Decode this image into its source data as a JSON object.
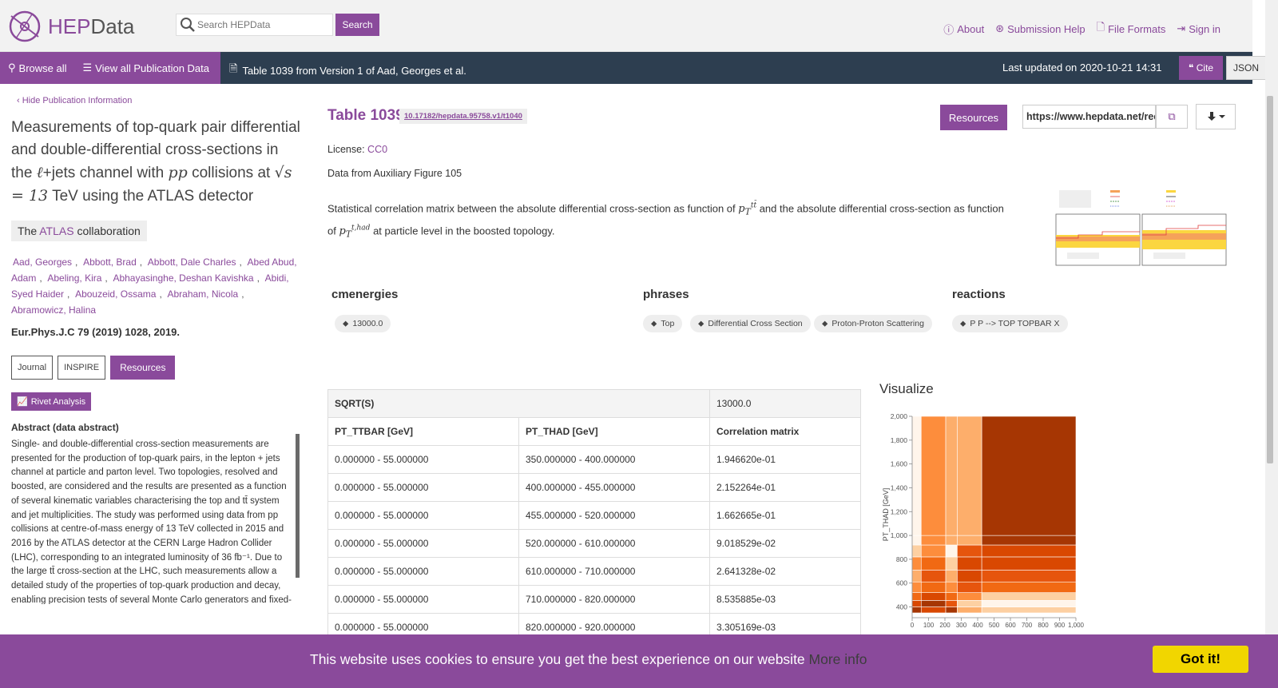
{
  "header": {
    "logo_text_a": "HEP",
    "logo_text_b": "Data",
    "search_placeholder": "Search HEPData",
    "search_button": "Search",
    "nav": [
      "About",
      "Submission Help",
      "File Formats",
      "Sign in"
    ]
  },
  "navbar": {
    "browse_all": "Browse all",
    "view_all": "View all Publication Data",
    "table_ref": "Table 1039 from Version 1 of Aad, Georges et al.",
    "last_updated": "Last updated on 2020-10-21 14:31",
    "cite": "Cite",
    "json": "JSON"
  },
  "publication": {
    "hide_info": "Hide Publication Information",
    "title_part1": "Measurements of top-quark pair differential and double-differential cross-sections in the",
    "title_part2": "+jets channel with",
    "title_part3": "collisions at",
    "title_part4": "TeV using the ATLAS detector",
    "collab_prefix": "The",
    "collab_name": "ATLAS",
    "collab_suffix": "collaboration",
    "authors": [
      "Aad, Georges",
      "Abbott, Brad",
      "Abbott, Dale Charles",
      "Abed Abud, Adam",
      "Abeling, Kira",
      "Abhayasinghe, Deshan Kavishka",
      "Abidi, Syed Haider",
      "Abouzeid, Ossama",
      "Abraham, Nicola",
      "Abramowicz, Halina"
    ],
    "journal": "Eur.Phys.J.C 79 (2019) 1028, 2019",
    "buttons": [
      "Journal",
      "INSPIRE",
      "Resources"
    ],
    "rivet": "Rivet Analysis",
    "abstract_heading": "Abstract (data abstract)",
    "abstract": "Single- and double-differential cross-section measurements are presented for the production of top-quark pairs, in the lepton + jets channel at particle and parton level. Two topologies, resolved and boosted, are considered and the results are presented as a function of several kinematic variables characterising the top and tt̄ system and jet multiplicities. The study was performed using data from pp collisions at centre-of-mass energy of 13 TeV collected in 2015 and 2016 by the ATLAS detector at the CERN Large Hadron Collider (LHC), corresponding to an integrated luminosity of 36 fb⁻¹. Due to the large tt̄ cross-section at the LHC, such measurements allow a detailed study of the properties of top-quark production and decay, enabling precision tests of several Monte Carlo generators and fixed-"
  },
  "table": {
    "title": "Table 1039",
    "doi": "10.17182/hepdata.95758.v1/t1040",
    "resources": "Resources",
    "url": "https://www.hepdata.net/record/ins1759875?version=1&table=Table%201039",
    "license_label": "License:",
    "license": "CC0",
    "data_from": "Data from Auxiliary Figure 105",
    "desc_a": "Statistical correlation matrix between the absolute differential cross-section as function of",
    "desc_b": "and the absolute differential cross-section as function of",
    "desc_c": "at particle level in the boosted topology.",
    "keywords": {
      "cmenergies": {
        "heading": "cmenergies",
        "chips": [
          "13000.0"
        ]
      },
      "phrases": {
        "heading": "phrases",
        "chips": [
          "Top",
          "Differential Cross Section",
          "Proton-Proton Scattering"
        ]
      },
      "reactions": {
        "heading": "reactions",
        "chips": [
          "P P --> TOP TOPBAR X"
        ]
      }
    },
    "qual_label": "SQRT(S)",
    "qual_value": "13000.0",
    "columns": [
      "PT_TTBAR [GeV]",
      "PT_THAD [GeV]",
      "Correlation matrix"
    ],
    "rows": [
      [
        "0.000000 - 55.000000",
        "350.000000 - 400.000000",
        "1.946620e-01"
      ],
      [
        "0.000000 - 55.000000",
        "400.000000 - 455.000000",
        "2.152264e-01"
      ],
      [
        "0.000000 - 55.000000",
        "455.000000 - 520.000000",
        "1.662665e-01"
      ],
      [
        "0.000000 - 55.000000",
        "520.000000 - 610.000000",
        "9.018529e-02"
      ],
      [
        "0.000000 - 55.000000",
        "610.000000 - 710.000000",
        "2.641328e-02"
      ],
      [
        "0.000000 - 55.000000",
        "710.000000 - 820.000000",
        "8.535885e-03"
      ],
      [
        "0.000000 - 55.000000",
        "820.000000 - 920.000000",
        "3.305169e-03"
      ]
    ]
  },
  "visualize": {
    "title": "Visualize",
    "ylabel": "PT_THAD [GeV]",
    "yticks": [
      "2,000",
      "1,800",
      "1,600",
      "1,400",
      "1,200",
      "1,000",
      "800",
      "600",
      "400"
    ],
    "xticks": [
      "0",
      "100",
      "200",
      "300",
      "400",
      "500",
      "600",
      "700",
      "800",
      "900",
      "1,000"
    ]
  },
  "chart_data": {
    "type": "heatmap",
    "title": "",
    "xlabel": "",
    "ylabel": "PT_THAD [GeV]",
    "x_edges": [
      0,
      55,
      205,
      275,
      425,
      1000
    ],
    "y_edges": [
      350,
      400,
      455,
      520,
      610,
      710,
      820,
      920,
      1000,
      2000
    ],
    "xlim": [
      0,
      1000
    ],
    "ylim": [
      350,
      2000
    ],
    "colors": [
      [
        "#a63603",
        "#d94801",
        "#a63603",
        "#fdae6b",
        "#fdd0a2"
      ],
      [
        "#d94801",
        "#a63603",
        "#e6550d",
        "#fdd0a2",
        "#fff5eb"
      ],
      [
        "#f16913",
        "#d94801",
        "#f16913",
        "#fd8d3c",
        "#fdd0a2"
      ],
      [
        "#fd8d3c",
        "#f16913",
        "#fd8d3c",
        "#e6550d",
        "#f16913"
      ],
      [
        "#fdae6b",
        "#e6550d",
        "#fdae6b",
        "#d94801",
        "#e6550d"
      ],
      [
        "#fd8d3c",
        "#f16913",
        "#fdd0a2",
        "#d94801",
        "#d94801"
      ],
      [
        "#fdd0a2",
        "#fd8d3c",
        "#fff5eb",
        "#e6550d",
        "#d94801"
      ],
      [
        "#fff5eb",
        "#fd8d3c",
        "#fdae6b",
        "#fdae6b",
        "#a63603"
      ],
      [
        "#fff5eb",
        "#fd8d3c",
        "#fdae6b",
        "#fdae6b",
        "#a63603"
      ]
    ]
  },
  "cookie": {
    "message": "This website uses cookies to ensure you get the best experience on our website",
    "more": "More info",
    "accept": "Got it!"
  }
}
